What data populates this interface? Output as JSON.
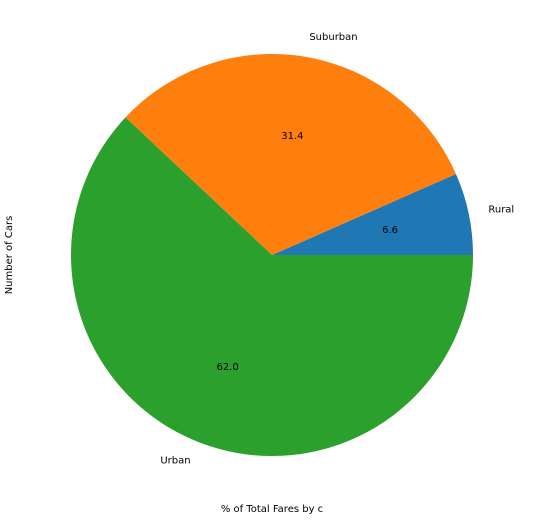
{
  "chart_data": {
    "type": "pie",
    "categories": [
      "Rural",
      "Suburban",
      "Urban"
    ],
    "values": [
      6.6,
      31.4,
      62.0
    ],
    "value_labels": [
      "6.6",
      "31.4",
      "62.0"
    ],
    "colors": [
      "#1f77b4",
      "#ff7f0e",
      "#2ca02c"
    ],
    "xlabel": "% of Total Fares by c",
    "ylabel": "Number of Cars",
    "start_angle_deg": 0,
    "direction": "counterclockwise",
    "legend": "none",
    "grid": false
  }
}
